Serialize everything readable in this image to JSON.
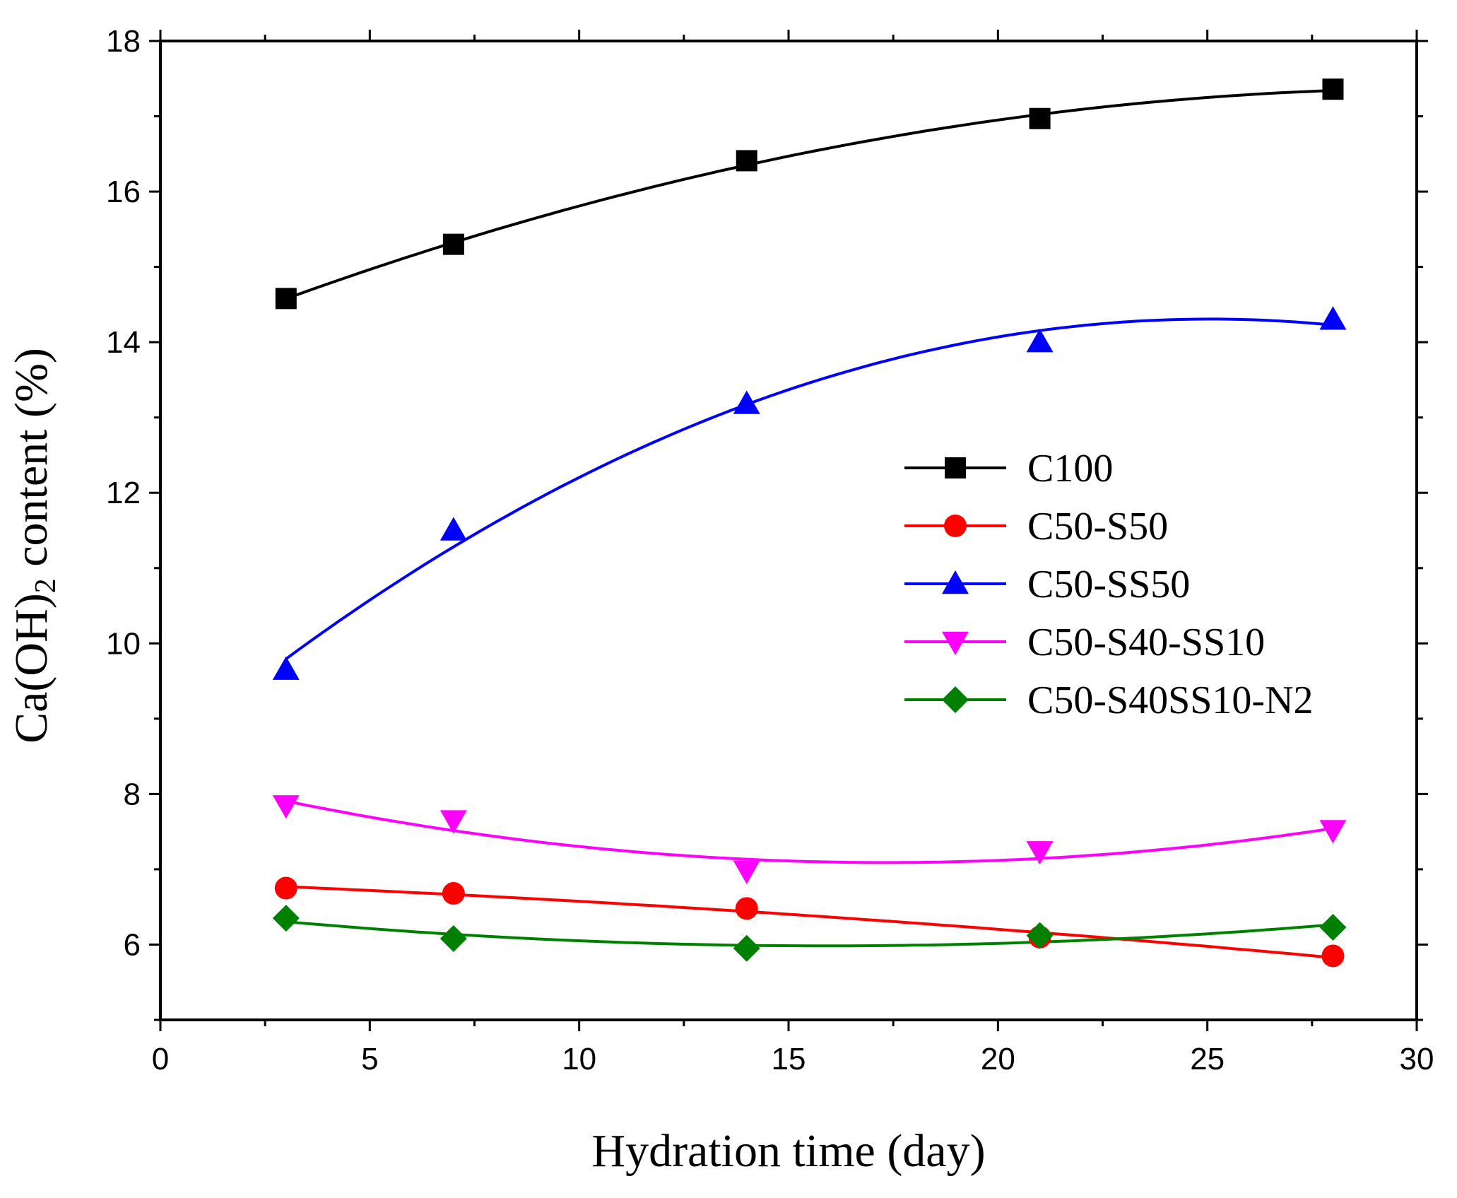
{
  "chart_data": {
    "type": "line",
    "title": "",
    "xlabel": "Hydration time (day)",
    "ylabel": {
      "prefix": "Ca(OH)",
      "subscript": "2",
      "suffix": " content (%)"
    },
    "xlim": [
      0,
      30
    ],
    "ylim": [
      5,
      18
    ],
    "xticks": [
      0,
      5,
      10,
      15,
      20,
      25,
      30
    ],
    "yticks": [
      6,
      8,
      10,
      12,
      14,
      16,
      18
    ],
    "grid": false,
    "legend_position": "center-right",
    "series": [
      {
        "name": "C100",
        "color": "#000000",
        "marker": "square",
        "x": [
          3,
          7,
          14,
          21,
          28
        ],
        "values": [
          14.58,
          15.3,
          16.41,
          16.97,
          17.36
        ]
      },
      {
        "name": "C50-S50",
        "color": "#ff0000",
        "marker": "circle",
        "x": [
          3,
          7,
          14,
          21,
          28
        ],
        "values": [
          6.75,
          6.68,
          6.48,
          6.1,
          5.85
        ]
      },
      {
        "name": "C50-SS50",
        "color": "#0000ff",
        "marker": "triangle-up",
        "x": [
          3,
          7,
          14,
          21,
          28
        ],
        "values": [
          9.65,
          11.5,
          13.18,
          14.0,
          14.3
        ]
      },
      {
        "name": "C50-S40-SS10",
        "color": "#ff00ff",
        "marker": "triangle-down",
        "x": [
          3,
          7,
          14,
          21,
          28
        ],
        "values": [
          7.85,
          7.65,
          6.98,
          7.24,
          7.52
        ]
      },
      {
        "name": "C50-S40SS10-N2",
        "color": "#008000",
        "marker": "diamond",
        "x": [
          3,
          7,
          14,
          21,
          28
        ],
        "values": [
          6.35,
          6.08,
          5.95,
          6.12,
          6.23
        ]
      }
    ]
  }
}
